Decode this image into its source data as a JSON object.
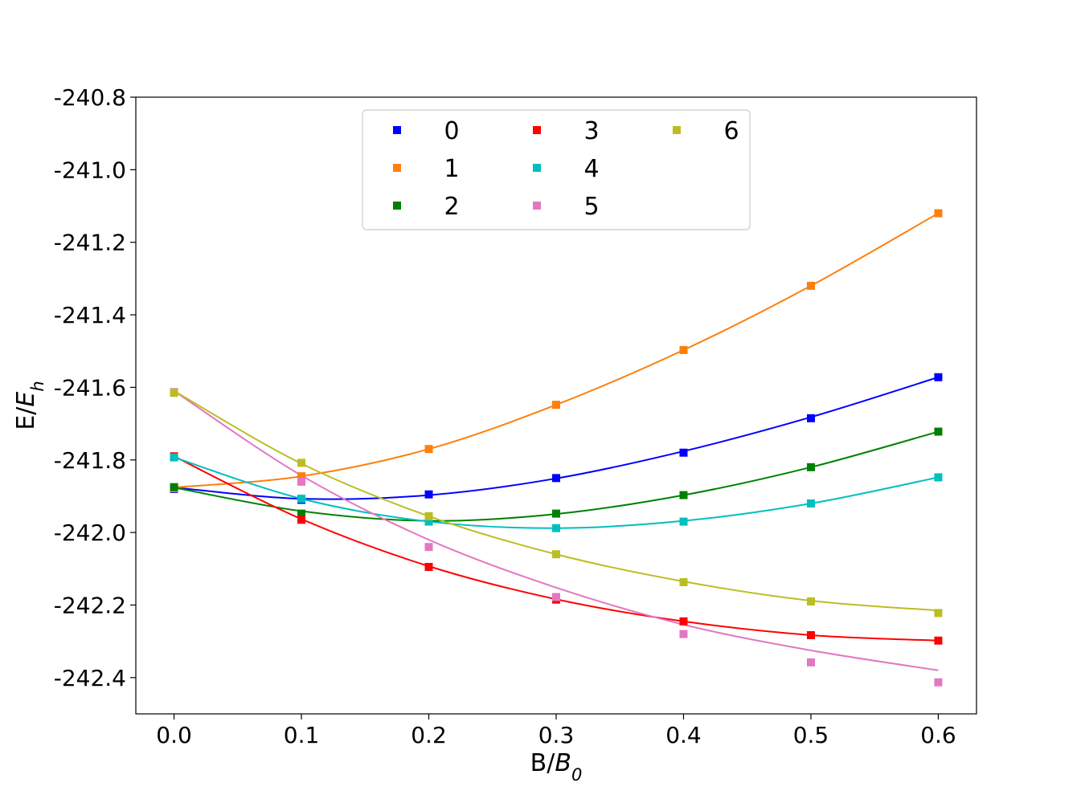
{
  "chart_data": {
    "type": "scatter",
    "title": "",
    "xlabel": "B/B₀",
    "ylabel": "E/Eₕ",
    "xlabel_parts": {
      "main": "B/",
      "italic": "B",
      "sub": "0"
    },
    "ylabel_parts": {
      "main": "E/",
      "italic": "E",
      "sub": "h"
    },
    "xlim": [
      -0.03,
      0.63
    ],
    "ylim": [
      -242.5,
      -240.8
    ],
    "xticks": [
      0.0,
      0.1,
      0.2,
      0.3,
      0.4,
      0.5,
      0.6
    ],
    "xtick_labels": [
      "0.0",
      "0.1",
      "0.2",
      "0.3",
      "0.4",
      "0.5",
      "0.6"
    ],
    "yticks": [
      -240.8,
      -241.0,
      -241.2,
      -241.4,
      -241.6,
      -241.8,
      -242.0,
      -242.2,
      -242.4
    ],
    "ytick_labels": [
      "-240.8",
      "-241.0",
      "-241.2",
      "-241.4",
      "-241.6",
      "-241.8",
      "-242.0",
      "-242.2",
      "-242.4"
    ],
    "grid": false,
    "legend": {
      "placement": "upper-center",
      "columns": 3
    },
    "x": [
      0.0,
      0.1,
      0.2,
      0.3,
      0.4,
      0.5,
      0.6
    ],
    "series": [
      {
        "name": "0",
        "color": "#0000ff",
        "points": [
          -241.88,
          -241.91,
          -241.895,
          -241.85,
          -241.78,
          -241.685,
          -241.572
        ],
        "fit": [
          -241.876,
          -241.907,
          -241.897,
          -241.851,
          -241.776,
          -241.682,
          -241.572
        ]
      },
      {
        "name": "1",
        "color": "#ff7f0e",
        "points": [
          -241.878,
          -241.845,
          -241.77,
          -241.648,
          -241.497,
          -241.32,
          -241.12
        ],
        "fit": [
          -241.876,
          -241.845,
          -241.77,
          -241.648,
          -241.497,
          -241.32,
          -241.12
        ]
      },
      {
        "name": "2",
        "color": "#008000",
        "points": [
          -241.875,
          -241.948,
          -241.965,
          -241.948,
          -241.897,
          -241.82,
          -241.722
        ],
        "fit": [
          -241.876,
          -241.941,
          -241.968,
          -241.949,
          -241.897,
          -241.82,
          -241.722
        ]
      },
      {
        "name": "3",
        "color": "#ff0000",
        "points": [
          -241.79,
          -241.965,
          -242.095,
          -242.185,
          -242.245,
          -242.283,
          -242.298
        ],
        "fit": [
          -241.79,
          -241.963,
          -242.093,
          -242.184,
          -242.245,
          -242.283,
          -242.298
        ]
      },
      {
        "name": "4",
        "color": "#00bfbf",
        "points": [
          -241.793,
          -241.907,
          -241.97,
          -241.988,
          -241.97,
          -241.92,
          -241.848
        ],
        "fit": [
          -241.793,
          -241.907,
          -241.97,
          -241.988,
          -241.968,
          -241.92,
          -241.848
        ]
      },
      {
        "name": "5",
        "color": "#e377c2",
        "points": [
          -241.613,
          -241.86,
          -242.04,
          -242.178,
          -242.28,
          -242.358,
          -242.413
        ],
        "fit": [
          -241.61,
          -241.843,
          -242.02,
          -242.152,
          -242.254,
          -242.325,
          -242.38
        ]
      },
      {
        "name": "6",
        "color": "#bcbd22",
        "points": [
          -241.615,
          -241.808,
          -241.955,
          -242.06,
          -242.137,
          -242.19,
          -242.222
        ],
        "fit": [
          -241.61,
          -241.81,
          -241.955,
          -242.06,
          -242.135,
          -242.188,
          -242.215
        ]
      }
    ]
  }
}
